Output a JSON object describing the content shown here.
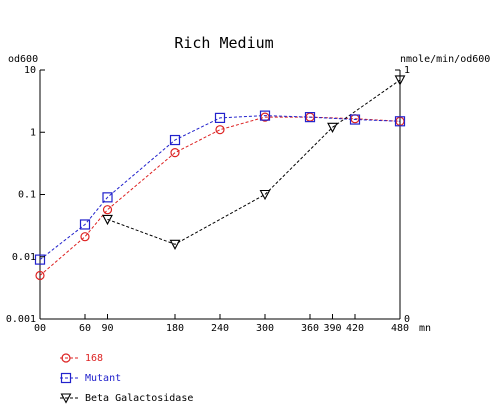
{
  "chart_data": {
    "type": "line",
    "title": "Rich Medium",
    "y_left_label": "od600",
    "y_right_label": "nmole/min/od600",
    "x_unit": "mn",
    "x_ticks": [
      0,
      60,
      90,
      180,
      240,
      300,
      360,
      390,
      420,
      480
    ],
    "x_tick_labels": [
      "00",
      "60",
      "90",
      "180",
      "240",
      "300",
      "360",
      "390",
      "420",
      "480"
    ],
    "xlim": [
      0,
      480
    ],
    "y_left_scale": "log",
    "y_left_ticks": [
      0.001,
      0.01,
      0.1,
      1,
      10
    ],
    "y_left_tick_labels": [
      "0.001",
      "0.01",
      "0.1",
      "1",
      "10"
    ],
    "ylim_left": [
      0.001,
      10
    ],
    "y_right_ticks": [
      0,
      1
    ],
    "y_right_tick_labels": [
      "0",
      "1"
    ],
    "ylim_right": [
      0,
      1
    ],
    "grid": false,
    "legend_position": "bottom-left",
    "series": [
      {
        "name": "168",
        "axis": "left",
        "marker": "circle",
        "color": "#dd2222",
        "x": [
          0,
          60,
          90,
          180,
          240,
          300,
          360,
          420,
          480
        ],
        "y": [
          0.005,
          0.021,
          0.057,
          0.47,
          1.1,
          1.75,
          1.75,
          1.65,
          1.5
        ]
      },
      {
        "name": "Mutant",
        "axis": "left",
        "marker": "square",
        "color": "#2222cc",
        "x": [
          0,
          60,
          90,
          180,
          240,
          300,
          360,
          420,
          480
        ],
        "y": [
          0.009,
          0.033,
          0.09,
          0.75,
          1.7,
          1.85,
          1.75,
          1.6,
          1.5
        ]
      },
      {
        "name": "Beta Galactosidase",
        "axis": "right",
        "marker": "triangle-down",
        "color": "#000000",
        "x": [
          90,
          180,
          300,
          390,
          480
        ],
        "y": [
          0.4,
          0.3,
          0.5,
          0.77,
          0.96
        ]
      }
    ]
  }
}
